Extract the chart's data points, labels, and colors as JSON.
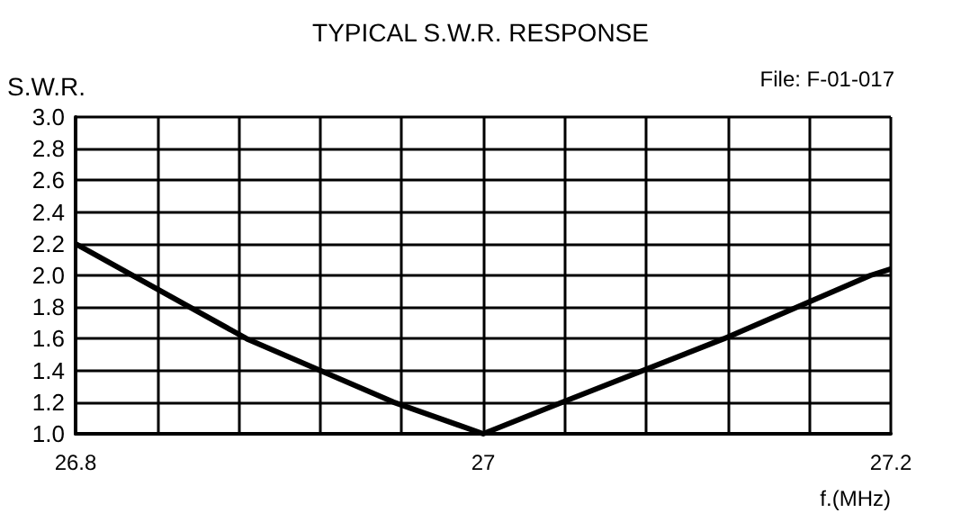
{
  "chart_data": {
    "type": "line",
    "title": "TYPICAL S.W.R. RESPONSE",
    "ylabel": "S.W.R.",
    "xlabel": "f.(MHz)",
    "annotations": [
      "File: F-01-017"
    ],
    "x": [
      26.8,
      26.884,
      26.956,
      27.0,
      27.039,
      27.118,
      27.19,
      27.2
    ],
    "series": [
      {
        "color": "#000000",
        "values": [
          2.2,
          1.6,
          1.2,
          1.0,
          1.2,
          1.6,
          2.0,
          2.04
        ]
      }
    ],
    "xlim": [
      26.8,
      27.2
    ],
    "xticks": [
      26.8,
      {
        "value": 26.84,
        "label": null
      },
      {
        "value": 26.88,
        "label": null
      },
      {
        "value": 26.92,
        "label": null
      },
      {
        "value": 26.96,
        "label": null
      },
      27,
      {
        "value": 27.04,
        "label": null
      },
      {
        "value": 27.08,
        "label": null
      },
      {
        "value": 27.12,
        "label": null
      },
      {
        "value": 27.16,
        "label": null
      },
      27.2
    ],
    "ylim": [
      1.0,
      3.0
    ],
    "yticks": [
      {
        "value": 1,
        "label": "1.0"
      },
      1.2,
      1.4,
      1.6,
      1.8,
      {
        "value": 2,
        "label": "2.0"
      },
      2.2,
      2.4,
      2.6,
      2.8,
      {
        "value": 3,
        "label": "3.0"
      }
    ],
    "grid": true,
    "marker": "none",
    "line_style": "solid"
  }
}
